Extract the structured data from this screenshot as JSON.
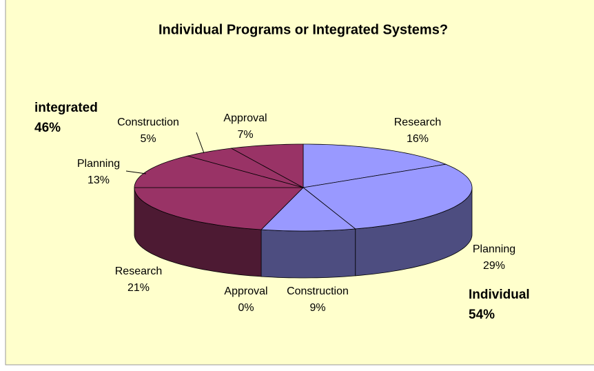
{
  "chart_data": {
    "type": "pie3d",
    "title": "Individual Programs or Integrated Systems?",
    "groups": [
      {
        "name": "Individual",
        "total": 54,
        "total_label": "54%",
        "color": "#9999ff",
        "side_color": "#4d4d80",
        "categories": [
          "Research",
          "Planning",
          "Construction",
          "Approval"
        ],
        "values": [
          16,
          29,
          9,
          0
        ],
        "value_labels": [
          "16%",
          "29%",
          "9%",
          "0%"
        ]
      },
      {
        "name": "integrated",
        "total": 46,
        "total_label": "46%",
        "color": "#993366",
        "side_color": "#4d1a33",
        "categories": [
          "Research",
          "Planning",
          "Construction",
          "Approval"
        ],
        "values": [
          21,
          13,
          5,
          7
        ],
        "value_labels": [
          "21%",
          "13%",
          "5%",
          "7%"
        ]
      }
    ]
  }
}
